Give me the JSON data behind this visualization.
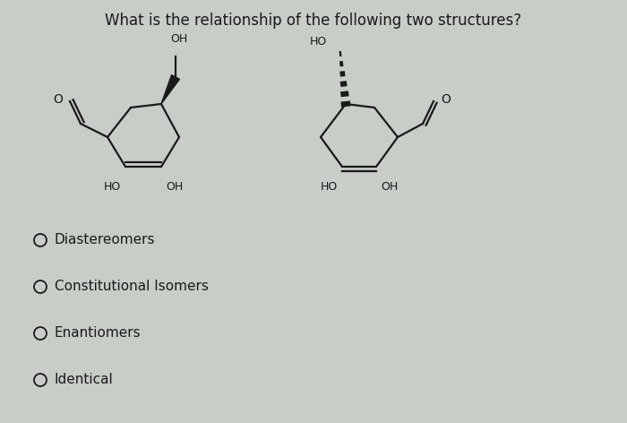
{
  "title": "What is the relationship of the following two structures?",
  "title_fontsize": 12,
  "bg_color": "#c8cdc8",
  "text_color": "#1a1a1a",
  "options": [
    "Diastereomers",
    "Constitutional Isomers",
    "Enantiomers",
    "Identical"
  ],
  "lw": 1.6,
  "fs_label": 9
}
